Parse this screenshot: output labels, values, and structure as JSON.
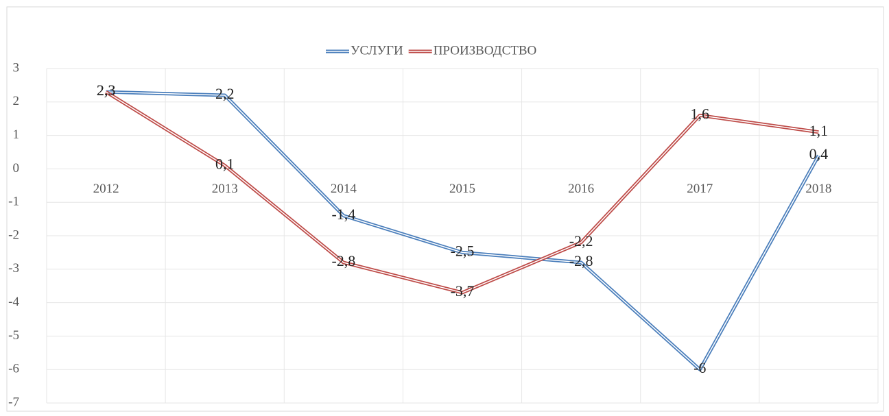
{
  "chart_data": {
    "type": "line",
    "categories": [
      "2012",
      "2013",
      "2014",
      "2015",
      "2016",
      "2017",
      "2018"
    ],
    "series": [
      {
        "name": "УСЛУГИ",
        "color": "#4a7ebb",
        "values": [
          2.3,
          2.2,
          -1.4,
          -2.5,
          -2.8,
          -6,
          0.4
        ],
        "value_labels": [
          "2,3",
          "2,2",
          "-1,4",
          "-2,5",
          "-2,8",
          "-6",
          "0,4"
        ]
      },
      {
        "name": "ПРОИЗВОДСТВО",
        "color": "#be4b48",
        "values": [
          2.3,
          0.1,
          -2.8,
          -3.7,
          -2.2,
          1.6,
          1.1
        ],
        "value_labels": [
          "2,3",
          "0,1",
          "-2,8",
          "-3,7",
          "-2,2",
          "1,6",
          "1,1"
        ]
      }
    ],
    "ylim": [
      -7,
      3
    ],
    "yticks": [
      -7,
      -6,
      -5,
      -4,
      -3,
      -2,
      -1,
      0,
      1,
      2,
      3
    ],
    "grid": true,
    "legend": "top"
  }
}
